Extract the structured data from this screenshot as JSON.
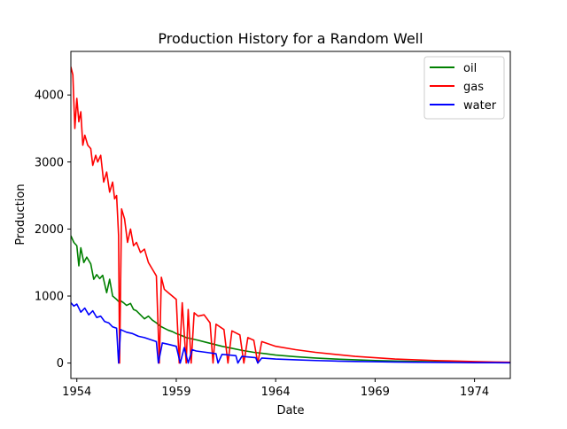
{
  "chart_data": {
    "type": "line",
    "title": "Production History for a Random Well",
    "xlabel": "Date",
    "ylabel": "Production",
    "x_unit": "year",
    "xlim": [
      1953.7,
      1975.8
    ],
    "ylim": [
      -230,
      4650
    ],
    "xticks": [
      {
        "value": 1954,
        "label": "1954"
      },
      {
        "value": 1959,
        "label": "1959"
      },
      {
        "value": 1964,
        "label": "1964"
      },
      {
        "value": 1969,
        "label": "1969"
      },
      {
        "value": 1974,
        "label": "1974"
      }
    ],
    "yticks": [
      {
        "value": 0,
        "label": "0"
      },
      {
        "value": 1000,
        "label": "1000"
      },
      {
        "value": 2000,
        "label": "2000"
      },
      {
        "value": 3000,
        "label": "3000"
      },
      {
        "value": 4000,
        "label": "4000"
      }
    ],
    "legend_position": "top-right",
    "grid": false,
    "series": [
      {
        "name": "oil",
        "color": "#008000",
        "points": [
          [
            1953.7,
            1900
          ],
          [
            1953.85,
            1800
          ],
          [
            1954.0,
            1750
          ],
          [
            1954.1,
            1450
          ],
          [
            1954.2,
            1720
          ],
          [
            1954.35,
            1500
          ],
          [
            1954.5,
            1580
          ],
          [
            1954.7,
            1480
          ],
          [
            1954.85,
            1250
          ],
          [
            1955.0,
            1320
          ],
          [
            1955.15,
            1260
          ],
          [
            1955.3,
            1310
          ],
          [
            1955.5,
            1050
          ],
          [
            1955.65,
            1250
          ],
          [
            1955.8,
            1000
          ],
          [
            1956.0,
            950
          ],
          [
            1956.1,
            920
          ],
          [
            1956.2,
            930
          ],
          [
            1956.35,
            900
          ],
          [
            1956.5,
            860
          ],
          [
            1956.7,
            890
          ],
          [
            1956.85,
            800
          ],
          [
            1957.0,
            780
          ],
          [
            1957.2,
            720
          ],
          [
            1957.4,
            660
          ],
          [
            1957.6,
            700
          ],
          [
            1957.8,
            640
          ],
          [
            1958.0,
            600
          ],
          [
            1958.2,
            550
          ],
          [
            1958.4,
            520
          ],
          [
            1958.6,
            490
          ],
          [
            1958.8,
            470
          ],
          [
            1959.0,
            440
          ],
          [
            1959.2,
            420
          ],
          [
            1959.5,
            380
          ],
          [
            1959.8,
            360
          ],
          [
            1960.1,
            340
          ],
          [
            1960.5,
            310
          ],
          [
            1960.9,
            280
          ],
          [
            1961.3,
            250
          ],
          [
            1961.8,
            220
          ],
          [
            1962.3,
            190
          ],
          [
            1962.9,
            160
          ],
          [
            1963.5,
            140
          ],
          [
            1964.0,
            120
          ],
          [
            1965.0,
            95
          ],
          [
            1966.0,
            75
          ],
          [
            1967.0,
            60
          ],
          [
            1968.0,
            48
          ],
          [
            1969.0,
            38
          ],
          [
            1970.0,
            30
          ],
          [
            1971.0,
            24
          ],
          [
            1972.0,
            20
          ],
          [
            1973.0,
            16
          ],
          [
            1974.0,
            12
          ],
          [
            1975.0,
            10
          ],
          [
            1975.8,
            8
          ]
        ]
      },
      {
        "name": "gas",
        "color": "#ff0000",
        "points": [
          [
            1953.7,
            4420
          ],
          [
            1953.8,
            4300
          ],
          [
            1953.9,
            3500
          ],
          [
            1954.0,
            3950
          ],
          [
            1954.1,
            3600
          ],
          [
            1954.2,
            3750
          ],
          [
            1954.3,
            3250
          ],
          [
            1954.4,
            3400
          ],
          [
            1954.55,
            3250
          ],
          [
            1954.7,
            3200
          ],
          [
            1954.8,
            2950
          ],
          [
            1954.95,
            3100
          ],
          [
            1955.05,
            3000
          ],
          [
            1955.2,
            3100
          ],
          [
            1955.35,
            2700
          ],
          [
            1955.5,
            2850
          ],
          [
            1955.65,
            2550
          ],
          [
            1955.8,
            2700
          ],
          [
            1955.9,
            2450
          ],
          [
            1956.0,
            2500
          ],
          [
            1956.1,
            1900
          ],
          [
            1956.15,
            0
          ],
          [
            1956.25,
            2300
          ],
          [
            1956.4,
            2150
          ],
          [
            1956.55,
            1800
          ],
          [
            1956.7,
            2000
          ],
          [
            1956.85,
            1750
          ],
          [
            1957.0,
            1800
          ],
          [
            1957.2,
            1650
          ],
          [
            1957.4,
            1700
          ],
          [
            1957.6,
            1500
          ],
          [
            1957.8,
            1400
          ],
          [
            1958.0,
            1300
          ],
          [
            1958.15,
            0
          ],
          [
            1958.25,
            1280
          ],
          [
            1958.4,
            1100
          ],
          [
            1958.6,
            1050
          ],
          [
            1958.8,
            1000
          ],
          [
            1959.0,
            950
          ],
          [
            1959.15,
            0
          ],
          [
            1959.3,
            900
          ],
          [
            1959.5,
            0
          ],
          [
            1959.6,
            800
          ],
          [
            1959.75,
            0
          ],
          [
            1959.9,
            750
          ],
          [
            1960.1,
            700
          ],
          [
            1960.4,
            720
          ],
          [
            1960.7,
            600
          ],
          [
            1960.85,
            0
          ],
          [
            1961.0,
            580
          ],
          [
            1961.4,
            500
          ],
          [
            1961.6,
            0
          ],
          [
            1961.8,
            480
          ],
          [
            1962.2,
            420
          ],
          [
            1962.4,
            0
          ],
          [
            1962.6,
            380
          ],
          [
            1962.9,
            340
          ],
          [
            1963.1,
            0
          ],
          [
            1963.3,
            320
          ],
          [
            1964.0,
            250
          ],
          [
            1965.0,
            200
          ],
          [
            1966.0,
            160
          ],
          [
            1967.0,
            130
          ],
          [
            1968.0,
            100
          ],
          [
            1969.0,
            80
          ],
          [
            1970.0,
            60
          ],
          [
            1971.0,
            48
          ],
          [
            1972.0,
            38
          ],
          [
            1973.0,
            30
          ],
          [
            1974.0,
            22
          ],
          [
            1975.0,
            16
          ],
          [
            1975.8,
            12
          ]
        ]
      },
      {
        "name": "water",
        "color": "#0000ff",
        "points": [
          [
            1953.7,
            900
          ],
          [
            1953.85,
            850
          ],
          [
            1954.0,
            880
          ],
          [
            1954.2,
            760
          ],
          [
            1954.4,
            820
          ],
          [
            1954.6,
            720
          ],
          [
            1954.8,
            780
          ],
          [
            1955.0,
            680
          ],
          [
            1955.2,
            700
          ],
          [
            1955.4,
            620
          ],
          [
            1955.6,
            600
          ],
          [
            1955.8,
            540
          ],
          [
            1956.0,
            520
          ],
          [
            1956.1,
            0
          ],
          [
            1956.2,
            500
          ],
          [
            1956.5,
            460
          ],
          [
            1956.8,
            440
          ],
          [
            1957.1,
            400
          ],
          [
            1957.4,
            380
          ],
          [
            1957.7,
            350
          ],
          [
            1958.0,
            320
          ],
          [
            1958.1,
            0
          ],
          [
            1958.3,
            300
          ],
          [
            1958.6,
            280
          ],
          [
            1959.0,
            250
          ],
          [
            1959.2,
            0
          ],
          [
            1959.4,
            230
          ],
          [
            1959.6,
            0
          ],
          [
            1959.8,
            200
          ],
          [
            1960.0,
            180
          ],
          [
            1960.5,
            160
          ],
          [
            1961.0,
            140
          ],
          [
            1961.1,
            0
          ],
          [
            1961.3,
            130
          ],
          [
            1962.0,
            110
          ],
          [
            1962.1,
            0
          ],
          [
            1962.3,
            100
          ],
          [
            1963.0,
            80
          ],
          [
            1963.1,
            0
          ],
          [
            1963.3,
            75
          ],
          [
            1964.0,
            60
          ],
          [
            1965.0,
            48
          ],
          [
            1966.0,
            38
          ],
          [
            1967.0,
            30
          ],
          [
            1968.0,
            24
          ],
          [
            1969.0,
            20
          ],
          [
            1970.0,
            16
          ],
          [
            1971.0,
            12
          ],
          [
            1972.0,
            10
          ],
          [
            1973.0,
            8
          ],
          [
            1974.0,
            6
          ],
          [
            1975.0,
            5
          ],
          [
            1975.8,
            4
          ]
        ]
      }
    ]
  }
}
